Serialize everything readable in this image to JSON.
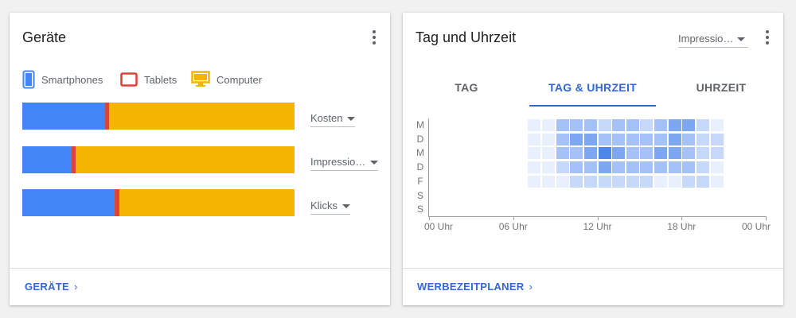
{
  "devices_card": {
    "title": "Geräte",
    "legend": [
      {
        "label": "Smartphones",
        "icon": "smartphone-icon",
        "color": "#4285f4"
      },
      {
        "label": "Tablets",
        "icon": "tablet-icon",
        "color": "#db4437"
      },
      {
        "label": "Computer",
        "icon": "computer-icon",
        "color": "#f4b400"
      }
    ],
    "rows": [
      {
        "metric": "Kosten",
        "shares": [
          0.305,
          0.015,
          0.68
        ]
      },
      {
        "metric": "Impressio…",
        "shares": [
          0.18,
          0.015,
          0.805
        ]
      },
      {
        "metric": "Klicks",
        "shares": [
          0.34,
          0.018,
          0.642
        ]
      }
    ],
    "footer_link": "GERÄTE",
    "footer_chevron": "›"
  },
  "schedule_card": {
    "title": "Tag und Uhrzeit",
    "metric_select": "Impressio…",
    "tabs": [
      {
        "label": "TAG",
        "active": false
      },
      {
        "label": "TAG & UHRZEIT",
        "active": true
      },
      {
        "label": "UHRZEIT",
        "active": false
      }
    ],
    "day_labels": [
      "M",
      "D",
      "M",
      "D",
      "F",
      "S",
      "S"
    ],
    "hour_labels": [
      "00 Uhr",
      "06 Uhr",
      "12 Uhr",
      "18 Uhr",
      "00 Uhr"
    ],
    "heatmap": {
      "first_hour": 7,
      "intensity": [
        [
          1,
          1,
          3,
          3,
          3,
          2,
          3,
          3,
          2,
          3,
          4,
          4,
          2,
          1
        ],
        [
          1,
          1,
          3,
          4,
          4,
          3,
          3,
          3,
          3,
          3,
          4,
          3,
          2,
          2
        ],
        [
          1,
          1,
          3,
          3,
          4,
          5,
          4,
          3,
          3,
          4,
          4,
          3,
          2,
          2
        ],
        [
          1,
          1,
          2,
          3,
          3,
          4,
          3,
          3,
          3,
          3,
          3,
          3,
          2,
          1
        ],
        [
          1,
          1,
          1,
          2,
          2,
          2,
          2,
          2,
          2,
          1,
          1,
          2,
          2,
          1
        ],
        [
          0,
          0,
          0,
          0,
          0,
          0,
          0,
          0,
          0,
          0,
          0,
          0,
          0,
          0
        ],
        [
          0,
          0,
          0,
          0,
          0,
          0,
          0,
          0,
          0,
          0,
          0,
          0,
          0,
          0
        ]
      ],
      "colors": [
        "#ffffff",
        "#e8f0fe",
        "#c6d9fb",
        "#a4c2f7",
        "#7ea7f1",
        "#4f86ec"
      ]
    },
    "footer_link": "WERBEZEITPLANER",
    "footer_chevron": "›"
  }
}
